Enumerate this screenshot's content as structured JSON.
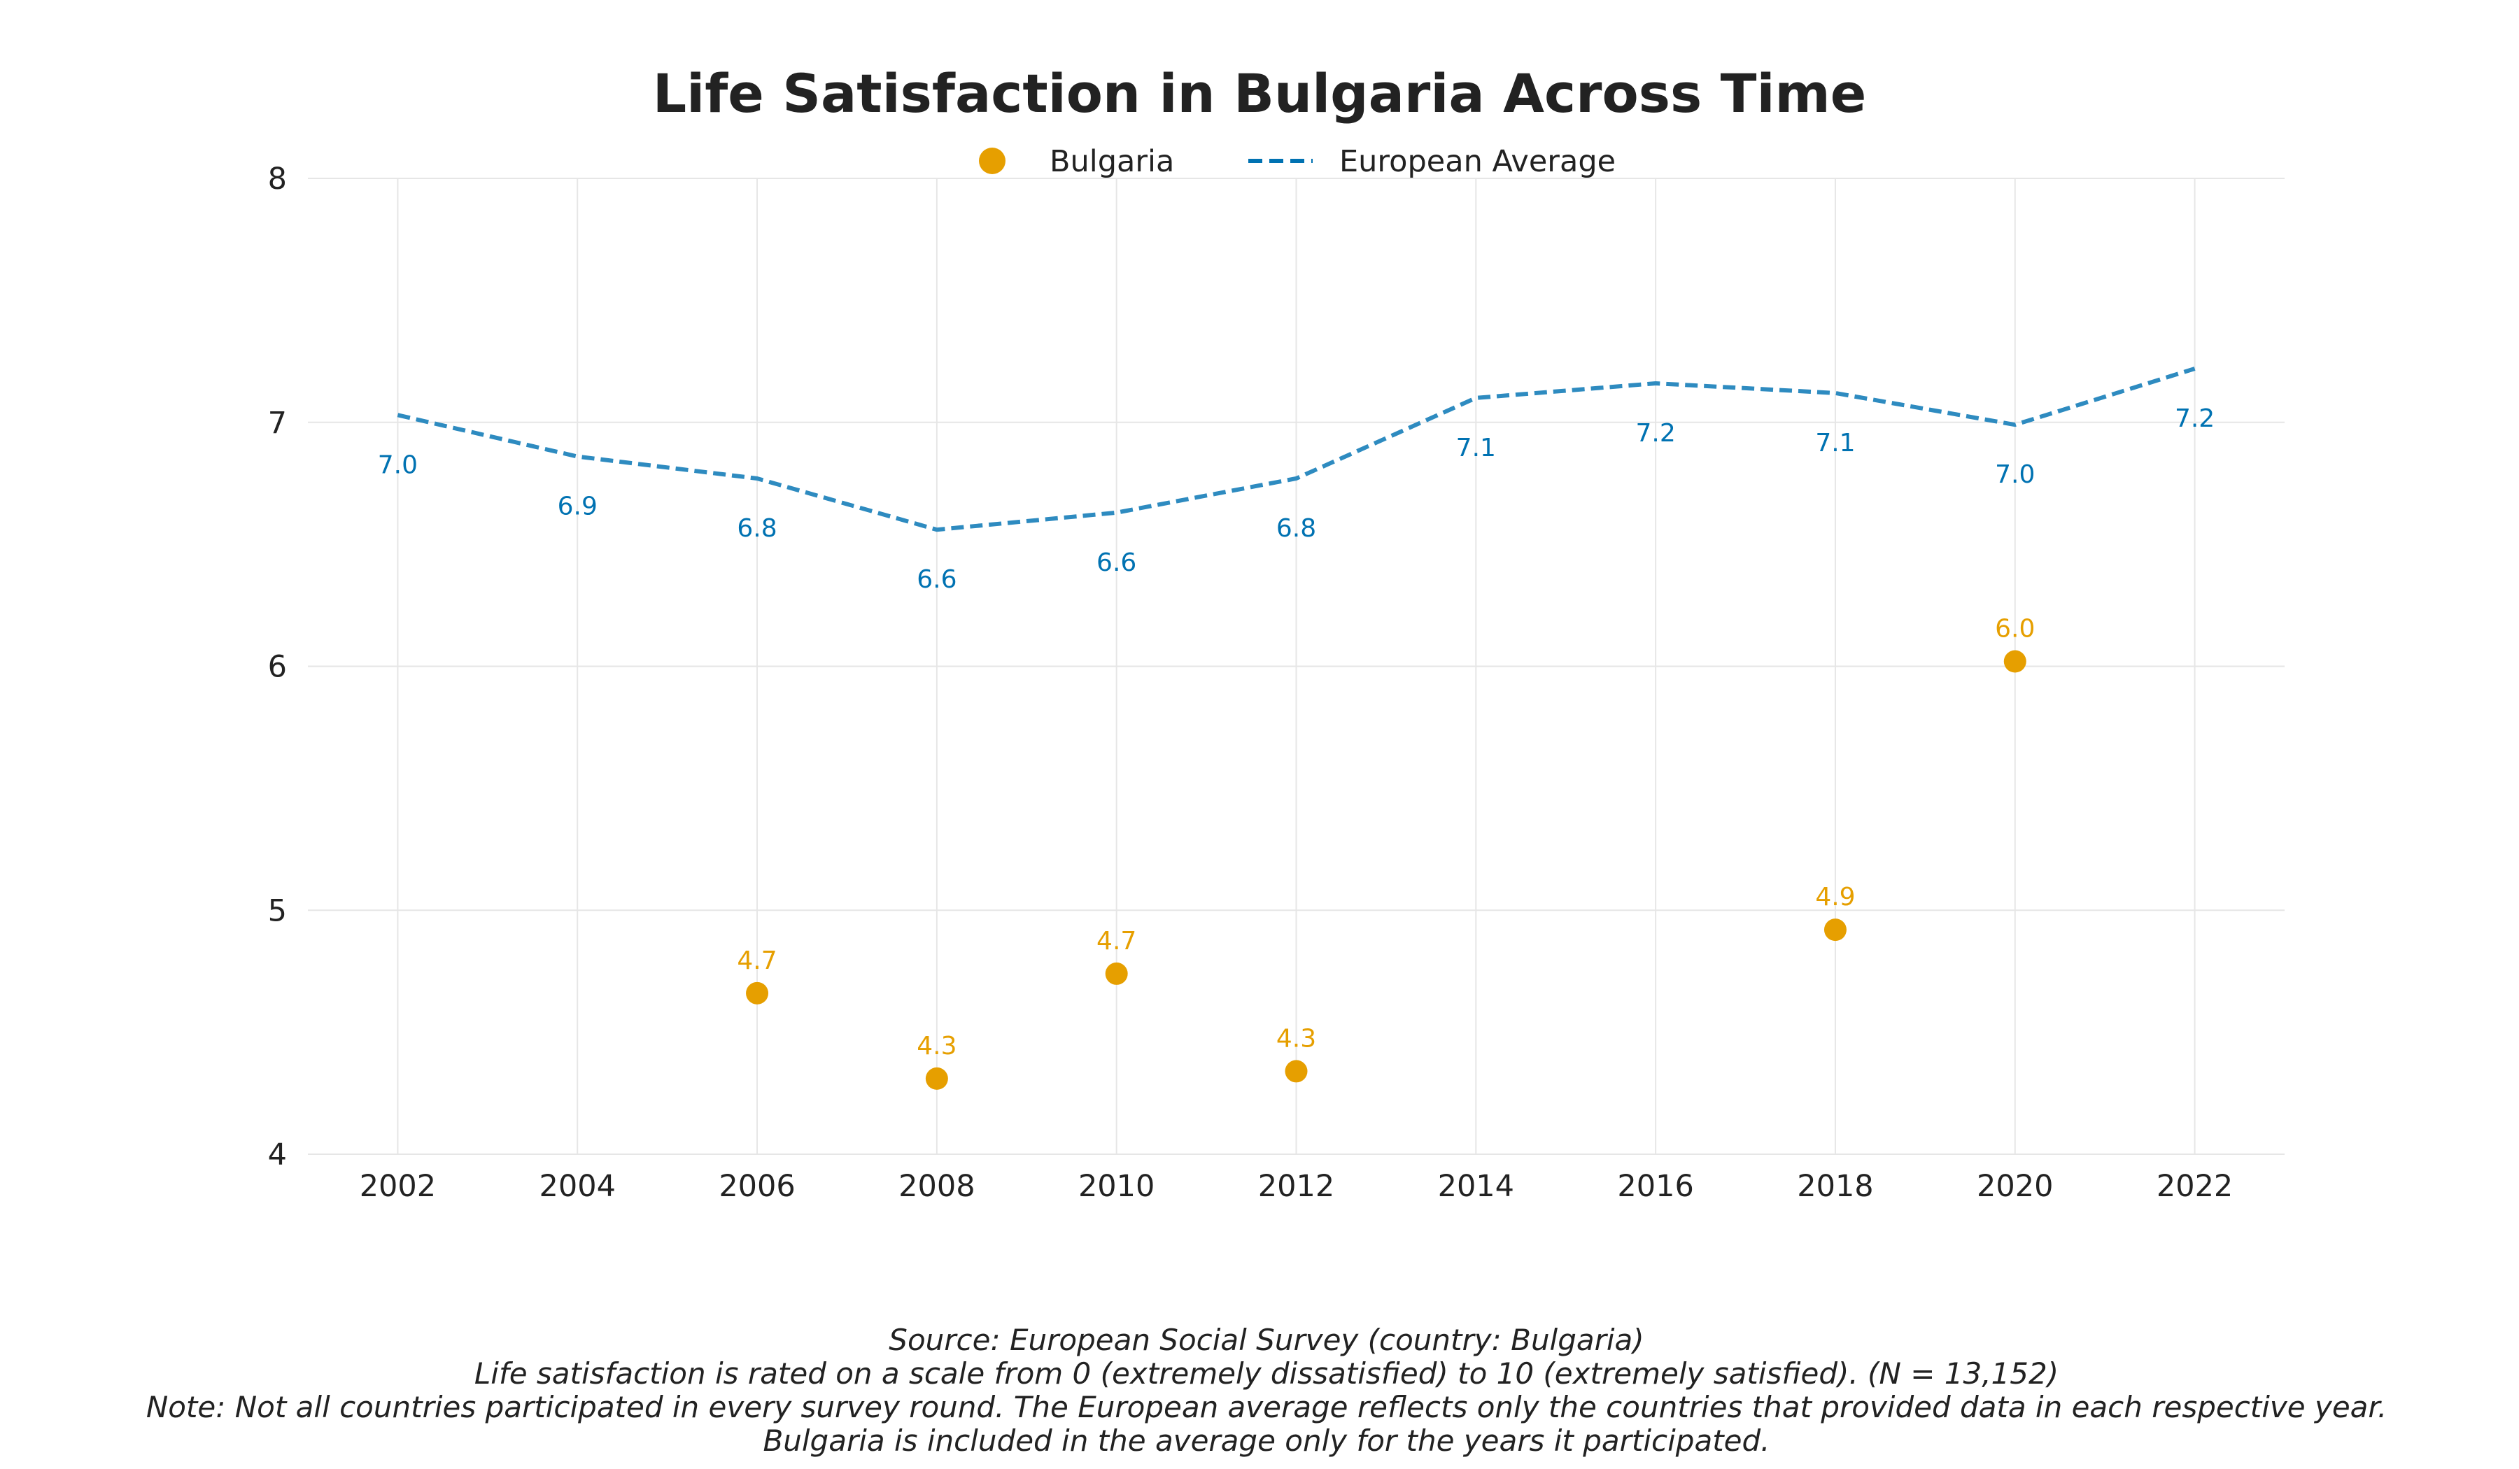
{
  "chart_data": {
    "type": "line",
    "title": "Life Satisfaction in Bulgaria Across Time",
    "xlabel": "",
    "ylabel": "",
    "x": [
      2002,
      2004,
      2006,
      2008,
      2010,
      2012,
      2014,
      2016,
      2018,
      2020,
      2022
    ],
    "xlim": [
      2001,
      2023
    ],
    "ylim": [
      4,
      8
    ],
    "yticks": [
      4,
      5,
      6,
      7,
      8
    ],
    "grid": true,
    "legend_position": "top-center",
    "series": [
      {
        "name": "Bulgaria",
        "style": "scatter",
        "color": "#e69f00",
        "points": [
          {
            "x": 2006,
            "y": 4.66,
            "label": "4.7"
          },
          {
            "x": 2008,
            "y": 4.31,
            "label": "4.3"
          },
          {
            "x": 2010,
            "y": 4.74,
            "label": "4.7"
          },
          {
            "x": 2012,
            "y": 4.34,
            "label": "4.3"
          },
          {
            "x": 2018,
            "y": 4.92,
            "label": "4.9"
          },
          {
            "x": 2020,
            "y": 6.02,
            "label": "6.0"
          }
        ]
      },
      {
        "name": "European Average",
        "style": "dashed-line",
        "color": "#2e8bc0",
        "label_color": "#0072b2",
        "points": [
          {
            "x": 2002,
            "y": 7.03,
            "label": "7.0"
          },
          {
            "x": 2004,
            "y": 6.86,
            "label": "6.9"
          },
          {
            "x": 2006,
            "y": 6.77,
            "label": "6.8"
          },
          {
            "x": 2008,
            "y": 6.56,
            "label": "6.6"
          },
          {
            "x": 2010,
            "y": 6.63,
            "label": "6.6"
          },
          {
            "x": 2012,
            "y": 6.77,
            "label": "6.8"
          },
          {
            "x": 2014,
            "y": 7.1,
            "label": "7.1"
          },
          {
            "x": 2016,
            "y": 7.16,
            "label": "7.2"
          },
          {
            "x": 2018,
            "y": 7.12,
            "label": "7.1"
          },
          {
            "x": 2020,
            "y": 6.99,
            "label": "7.0"
          },
          {
            "x": 2022,
            "y": 7.22,
            "label": "7.2"
          }
        ]
      }
    ],
    "footer_lines": [
      "Source: European Social Survey (country: Bulgaria)",
      "Life satisfaction is rated on a scale from 0 (extremely dissatisfied) to 10 (extremely satisfied). (N = 13,152)",
      "Note: Not all countries participated in every survey round. The European average reflects only the countries that provided data in each respective year.",
      "Bulgaria is included in the average only for the years it participated."
    ]
  }
}
